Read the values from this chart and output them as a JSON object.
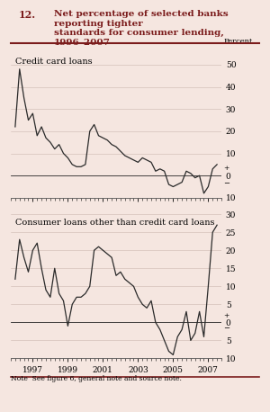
{
  "title_num": "12.",
  "title_text": "Net percentage of selected banks reporting tighter\nstandards for consumer lending, 1996–2007",
  "bg_color": "#f5e6e0",
  "line_color": "#2a2a2a",
  "ylabel_text": "Percent",
  "note_text": "Note  See figure 6, general note and source note.",
  "cc_label": "Credit card loans",
  "cc_ylim": [
    -10,
    55
  ],
  "cc_yticks": [
    -10,
    0,
    10,
    20,
    30,
    40,
    50
  ],
  "cc_ytick_labels": [
    "10",
    "0",
    "10",
    "20",
    "30",
    "40",
    "50"
  ],
  "cl_label": "Consumer loans other than credit card loans",
  "cl_ylim": [
    -10,
    30
  ],
  "cl_yticks": [
    -10,
    -5,
    0,
    5,
    10,
    15,
    20,
    25,
    30
  ],
  "cl_ytick_labels": [
    "10",
    "5",
    "0",
    "5",
    "10",
    "15",
    "20",
    "25",
    "30"
  ],
  "cc_x": [
    1996.0,
    1996.25,
    1996.5,
    1996.75,
    1997.0,
    1997.25,
    1997.5,
    1997.75,
    1998.0,
    1998.25,
    1998.5,
    1998.75,
    1999.0,
    1999.25,
    1999.5,
    1999.75,
    2000.0,
    2000.25,
    2000.5,
    2000.75,
    2001.0,
    2001.25,
    2001.5,
    2001.75,
    2002.0,
    2002.25,
    2002.5,
    2002.75,
    2003.0,
    2003.25,
    2003.5,
    2003.75,
    2004.0,
    2004.25,
    2004.5,
    2004.75,
    2005.0,
    2005.25,
    2005.5,
    2005.75,
    2006.0,
    2006.25,
    2006.5,
    2006.75,
    2007.0,
    2007.25,
    2007.5
  ],
  "cc_y": [
    22,
    48,
    35,
    25,
    28,
    18,
    22,
    17,
    15,
    12,
    14,
    10,
    8,
    5,
    4,
    4,
    5,
    20,
    23,
    18,
    17,
    16,
    14,
    13,
    11,
    9,
    8,
    7,
    6,
    8,
    7,
    6,
    2,
    3,
    2,
    -4,
    -5,
    -4,
    -3,
    2,
    1,
    -1,
    0,
    -8,
    -5,
    3,
    5
  ],
  "cl_x": [
    1996.0,
    1996.25,
    1996.5,
    1996.75,
    1997.0,
    1997.25,
    1997.5,
    1997.75,
    1998.0,
    1998.25,
    1998.5,
    1998.75,
    1999.0,
    1999.25,
    1999.5,
    1999.75,
    2000.0,
    2000.25,
    2000.5,
    2000.75,
    2001.0,
    2001.25,
    2001.5,
    2001.75,
    2002.0,
    2002.25,
    2002.5,
    2002.75,
    2003.0,
    2003.25,
    2003.5,
    2003.75,
    2004.0,
    2004.25,
    2004.5,
    2004.75,
    2005.0,
    2005.25,
    2005.5,
    2005.75,
    2006.0,
    2006.25,
    2006.5,
    2006.75,
    2007.0,
    2007.25,
    2007.5
  ],
  "cl_y": [
    12,
    23,
    18,
    14,
    20,
    22,
    15,
    9,
    7,
    15,
    8,
    6,
    -1,
    5,
    7,
    7,
    8,
    10,
    20,
    21,
    20,
    19,
    18,
    13,
    14,
    12,
    11,
    10,
    7,
    5,
    4,
    6,
    0,
    -2,
    -5,
    -8,
    -9,
    -4,
    -2,
    3,
    -5,
    -3,
    3,
    -4,
    10,
    25,
    27
  ],
  "xticks": [
    1997,
    1999,
    2001,
    2003,
    2005,
    2007
  ],
  "xlim": [
    1995.75,
    2007.75
  ],
  "header_color": "#7b1c1c",
  "header_line_color": "#7b1c1c"
}
